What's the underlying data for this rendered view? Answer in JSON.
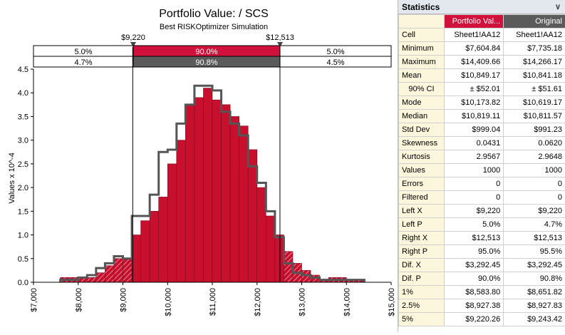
{
  "chart": {
    "title": "Portfolio Value: / SCS",
    "subtitle": "Best RISKOptimizer Simulation",
    "ylabel": "Values x 10^-4",
    "left_marker": "$9,220",
    "right_marker": "$12,513",
    "band_top": [
      "5.0%",
      "90.0%",
      "5.0%"
    ],
    "band_bottom": [
      "4.7%",
      "90.8%",
      "4.5%"
    ],
    "colors": {
      "portfolio": "#c8102e",
      "original": "#555555",
      "band_bottom": "#5b5b5b"
    }
  },
  "chart_data": {
    "type": "bar",
    "xlim": [
      7000,
      15000
    ],
    "ylim": [
      0,
      4.5
    ],
    "x_ticks": [
      7000,
      8000,
      9000,
      10000,
      11000,
      12000,
      13000,
      14000,
      15000
    ],
    "x_tick_labels": [
      "$7,000",
      "$8,000",
      "$9,000",
      "$10,000",
      "$11,000",
      "$12,000",
      "$13,000",
      "$14,000",
      "$15,000"
    ],
    "y_ticks": [
      0,
      0.5,
      1.0,
      1.5,
      2.0,
      2.5,
      3.0,
      3.5,
      4.0,
      4.5
    ],
    "y_tick_labels": [
      "0.0",
      "0.5",
      "1.0",
      "1.5",
      "2.0",
      "2.5",
      "3.0",
      "3.5",
      "4.0",
      "4.5"
    ],
    "bin_edges": [
      7600,
      7800,
      8000,
      8200,
      8400,
      8600,
      8800,
      9000,
      9200,
      9400,
      9600,
      9800,
      10000,
      10200,
      10400,
      10600,
      10800,
      11000,
      11200,
      11400,
      11600,
      11800,
      12000,
      12200,
      12400,
      12600,
      12800,
      13000,
      13200,
      13400,
      13600,
      13800,
      14000,
      14200,
      14400
    ],
    "series": [
      {
        "name": "Portfolio Value",
        "values": [
          0.1,
          0.1,
          0.1,
          0.1,
          0.2,
          0.35,
          0.5,
          0.5,
          1.0,
          1.3,
          1.5,
          1.8,
          2.5,
          3.0,
          3.75,
          3.9,
          4.1,
          3.85,
          3.75,
          3.5,
          3.3,
          2.8,
          2.0,
          1.4,
          1.0,
          0.65,
          0.4,
          0.25,
          0.15,
          0.05,
          0.1,
          0.1,
          0.05,
          0.05
        ]
      },
      {
        "name": "Original",
        "values": [
          0.05,
          0.05,
          0.1,
          0.15,
          0.3,
          0.4,
          0.55,
          0.5,
          1.4,
          1.4,
          1.85,
          2.75,
          2.8,
          3.35,
          3.75,
          4.15,
          4.15,
          4.05,
          3.6,
          3.35,
          3.1,
          2.45,
          2.1,
          1.5,
          0.95,
          0.4,
          0.2,
          0.15,
          0.1,
          0.05,
          0.05,
          0.05,
          0.05,
          0.05
        ]
      }
    ],
    "markers": [
      9220,
      12513
    ]
  },
  "stats": {
    "title": "Statistics",
    "col1_header": "Portfolio Val...",
    "col2_header": "Original",
    "rows": [
      {
        "label": "Cell",
        "v1": "Sheet1!AA12",
        "v2": "Sheet1!AA12"
      },
      {
        "label": "Minimum",
        "v1": "$7,604.84",
        "v2": "$7,735.18"
      },
      {
        "label": "Maximum",
        "v1": "$14,409.66",
        "v2": "$14,266.17"
      },
      {
        "label": "Mean",
        "v1": "$10,849.17",
        "v2": "$10,841.18"
      },
      {
        "label": "90% CI",
        "v1": "± $52.01",
        "v2": "± $51.61"
      },
      {
        "label": "Mode",
        "v1": "$10,173.82",
        "v2": "$10,619.17"
      },
      {
        "label": "Median",
        "v1": "$10,819.11",
        "v2": "$10,811.57"
      },
      {
        "label": "Std Dev",
        "v1": "$999.04",
        "v2": "$991.23"
      },
      {
        "label": "Skewness",
        "v1": "0.0431",
        "v2": "0.0620"
      },
      {
        "label": "Kurtosis",
        "v1": "2.9567",
        "v2": "2.9648"
      },
      {
        "label": "Values",
        "v1": "1000",
        "v2": "1000"
      },
      {
        "label": "Errors",
        "v1": "0",
        "v2": "0"
      },
      {
        "label": "Filtered",
        "v1": "0",
        "v2": "0"
      },
      {
        "label": "Left X",
        "v1": "$9,220",
        "v2": "$9,220"
      },
      {
        "label": "Left P",
        "v1": "5.0%",
        "v2": "4.7%"
      },
      {
        "label": "Right X",
        "v1": "$12,513",
        "v2": "$12,513"
      },
      {
        "label": "Right P",
        "v1": "95.0%",
        "v2": "95.5%"
      },
      {
        "label": "Dif. X",
        "v1": "$3,292.45",
        "v2": "$3,292.45"
      },
      {
        "label": "Dif. P",
        "v1": "90.0%",
        "v2": "90.8%"
      },
      {
        "label": "1%",
        "v1": "$8,583.80",
        "v2": "$8,651.82"
      },
      {
        "label": "2.5%",
        "v1": "$8,927.38",
        "v2": "$8,927.83"
      },
      {
        "label": "5%",
        "v1": "$9,220.26",
        "v2": "$9,243.42"
      }
    ]
  }
}
